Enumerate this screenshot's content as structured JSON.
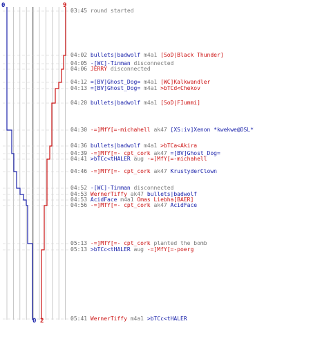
{
  "colors": {
    "ct": "#1a22aa",
    "t": "#cc1111",
    "time": "#666666",
    "event": "#777777",
    "grid": "#bbbbbb",
    "baseline": "#777777",
    "guide": "#cccccc"
  },
  "scores": {
    "ct_start": "0",
    "t_start": "9",
    "ct_end": "0",
    "t_end": "2"
  },
  "events": [
    {
      "time": "03:45",
      "parts": [
        {
          "text": "round started",
          "c": "g"
        }
      ]
    },
    {
      "time": "04:02",
      "parts": [
        {
          "text": "bullets|badwolf",
          "c": "b"
        },
        {
          "text": "m4a1",
          "c": "g"
        },
        {
          "text": "[SoD|Black Thunder]",
          "c": "r"
        }
      ]
    },
    {
      "time": "04:05",
      "parts": [
        {
          "text": "-[WC]-Tinman",
          "c": "b"
        },
        {
          "text": "disconnected",
          "c": "g"
        }
      ]
    },
    {
      "time": "04:06",
      "parts": [
        {
          "text": "JERRY",
          "c": "r"
        },
        {
          "text": "disconnected",
          "c": "g"
        }
      ]
    },
    {
      "time": "04:12",
      "parts": [
        {
          "text": "=[BV]Ghost_Dog=",
          "c": "b"
        },
        {
          "text": "m4a1",
          "c": "g"
        },
        {
          "text": "[WC]Kalkwandler",
          "c": "r"
        }
      ]
    },
    {
      "time": "04:13",
      "parts": [
        {
          "text": "=[BV]Ghost_Dog=",
          "c": "b"
        },
        {
          "text": "m4a1",
          "c": "g"
        },
        {
          "text": ">bTCd<Chekov",
          "c": "r"
        }
      ]
    },
    {
      "time": "04:20",
      "parts": [
        {
          "text": "bullets|badwolf",
          "c": "b"
        },
        {
          "text": "m4a1",
          "c": "g"
        },
        {
          "text": "[SoD|FIummi]",
          "c": "r"
        }
      ]
    },
    {
      "time": "04:30",
      "parts": [
        {
          "text": "-=]MfY[=-michahell",
          "c": "r"
        },
        {
          "text": "ak47",
          "c": "g"
        },
        {
          "text": "[XS:iv]Xenon *kwekwe@DSL*",
          "c": "b"
        }
      ]
    },
    {
      "time": "04:36",
      "parts": [
        {
          "text": "bullets|badwolf",
          "c": "b"
        },
        {
          "text": "m4a1",
          "c": "g"
        },
        {
          "text": ">bTCa<Akira",
          "c": "r"
        }
      ]
    },
    {
      "time": "04:39",
      "parts": [
        {
          "text": "-=]MfY[=- cpt_cork",
          "c": "r"
        },
        {
          "text": "ak47",
          "c": "g"
        },
        {
          "text": "=[BV]Ghost_Dog=",
          "c": "b"
        }
      ]
    },
    {
      "time": "04:41",
      "parts": [
        {
          "text": ">bTCc<tHALER",
          "c": "b"
        },
        {
          "text": "aug",
          "c": "g"
        },
        {
          "text": "-=]MfY[=-michahell",
          "c": "r"
        }
      ]
    },
    {
      "time": "04:46",
      "parts": [
        {
          "text": "-=]MfY[=- cpt_cork",
          "c": "r"
        },
        {
          "text": "ak47",
          "c": "g"
        },
        {
          "text": "KrustyderClown",
          "c": "b"
        }
      ]
    },
    {
      "time": "04:52",
      "parts": [
        {
          "text": "-[WC]-Tinman",
          "c": "b"
        },
        {
          "text": "disconnected",
          "c": "g"
        }
      ]
    },
    {
      "time": "04:53",
      "parts": [
        {
          "text": "WernerTiffy",
          "c": "r"
        },
        {
          "text": "ak47",
          "c": "g"
        },
        {
          "text": "bullets|badwolf",
          "c": "b"
        }
      ]
    },
    {
      "time": "04:53",
      "parts": [
        {
          "text": "AcidFace",
          "c": "b"
        },
        {
          "text": "m4a1",
          "c": "g"
        },
        {
          "text": "Omas Liebha[BAER]",
          "c": "r"
        }
      ]
    },
    {
      "time": "04:56",
      "parts": [
        {
          "text": "-=]MfY[=- cpt_cork",
          "c": "r"
        },
        {
          "text": "ak47",
          "c": "g"
        },
        {
          "text": "AcidFace",
          "c": "b"
        }
      ]
    },
    {
      "time": "05:13",
      "parts": [
        {
          "text": "-=]MfY[=- cpt_cork",
          "c": "r"
        },
        {
          "text": "planted the bomb",
          "c": "g"
        }
      ]
    },
    {
      "time": "05:13",
      "parts": [
        {
          "text": ">bTCc<tHALER",
          "c": "b"
        },
        {
          "text": "aug",
          "c": "g"
        },
        {
          "text": "-=]MfY[=-poerg",
          "c": "r"
        }
      ]
    },
    {
      "time": "05:41",
      "parts": [
        {
          "text": "WernerTiffy",
          "c": "r"
        },
        {
          "text": "m4a1",
          "c": "g"
        },
        {
          "text": ">bTCc<tHALER",
          "c": "b"
        }
      ]
    }
  ]
}
